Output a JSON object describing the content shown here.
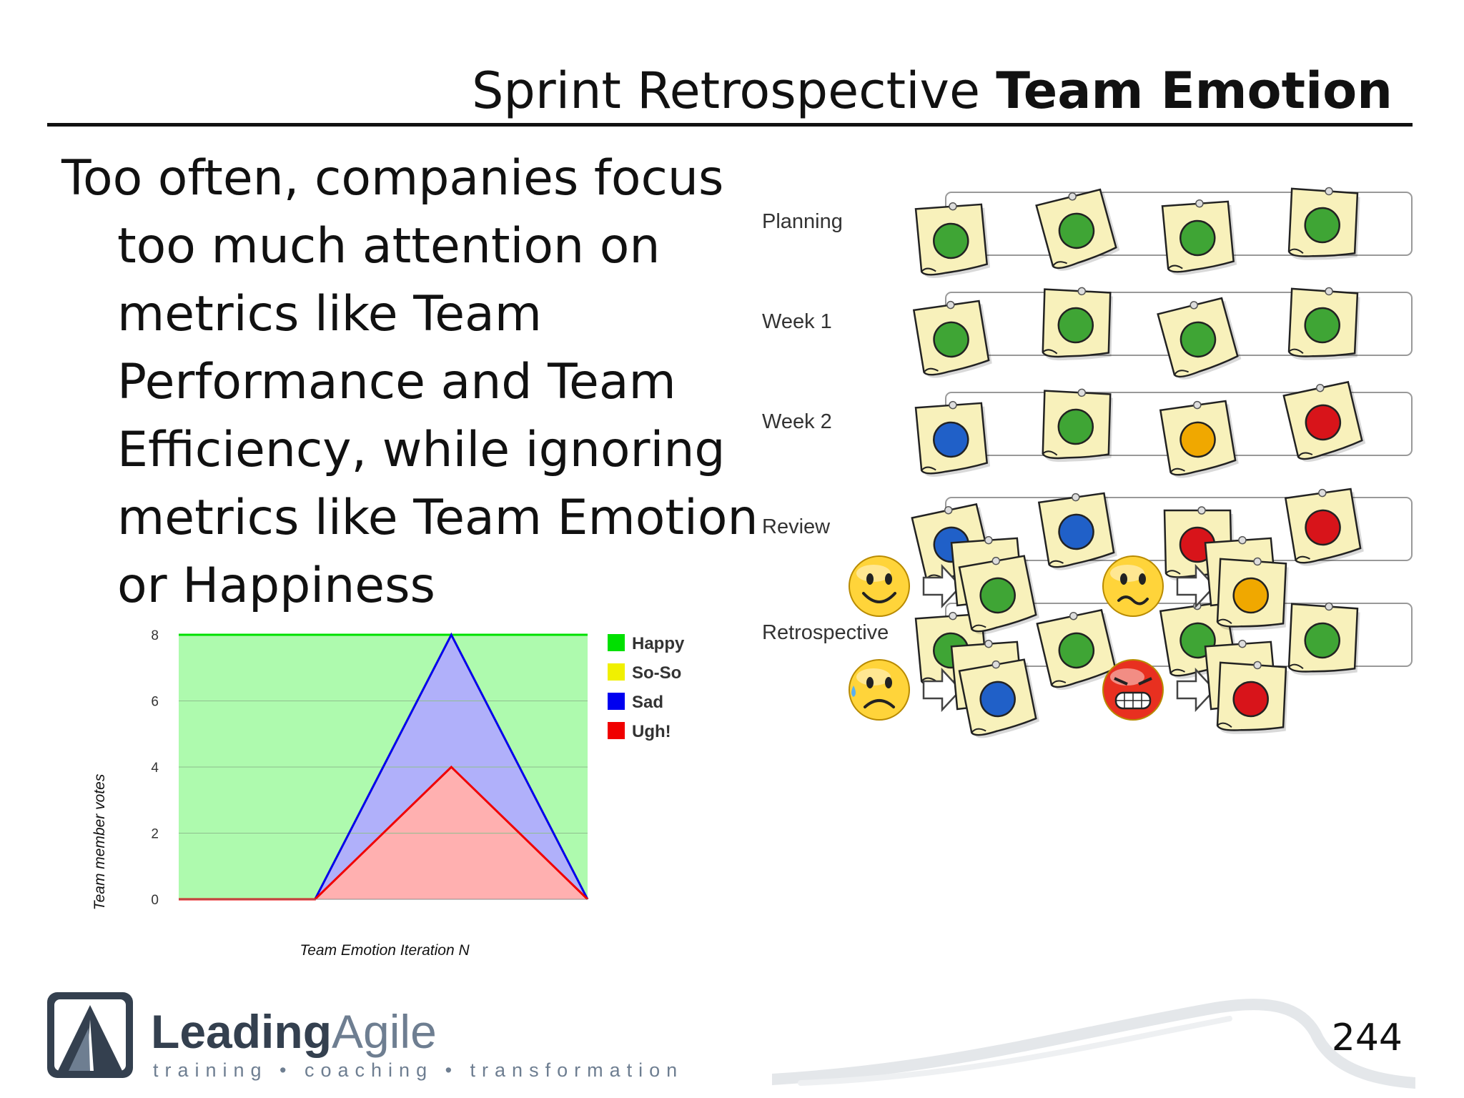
{
  "slide": {
    "title_normal": "Sprint Retrospective ",
    "title_bold": "Team Emotion",
    "body": "Too often, companies focus too much attention on metrics like Team Performance and Team Efficiency, while ignoring metrics like Team Emotion or Happiness",
    "page_number": "244"
  },
  "logo": {
    "name_part1": "Leading",
    "name_part2": "Agile",
    "tagline": "training • coaching • transformation",
    "dark_color": "#34404f",
    "light_color": "#6e7e91"
  },
  "emotion_board": {
    "rows": [
      {
        "label": "Planning",
        "notes": [
          "green",
          "green",
          "green",
          "green"
        ]
      },
      {
        "label": "Week 1",
        "notes": [
          "green",
          "green",
          "green",
          "green"
        ]
      },
      {
        "label": "Week 2",
        "notes": [
          "blue",
          "green",
          "yellow",
          "red"
        ]
      },
      {
        "label": "Review",
        "notes": [
          "blue",
          "blue",
          "red",
          "red"
        ]
      },
      {
        "label": "Retrospective",
        "notes": [
          "green",
          "green",
          "green",
          "green"
        ]
      }
    ],
    "legend": [
      {
        "icon": "happy-face-icon",
        "dot": "green"
      },
      {
        "icon": "unsure-face-icon",
        "dot": "yellow"
      },
      {
        "icon": "sad-face-icon",
        "dot": "blue"
      },
      {
        "icon": "angry-face-icon",
        "dot": "red"
      }
    ],
    "dot_colors": {
      "green": "#3fa535",
      "blue": "#2060c8",
      "yellow": "#f0a800",
      "red": "#d8141a"
    },
    "note_color": "#f8f1bb"
  },
  "chart_data": {
    "type": "area",
    "title": "",
    "xlabel": "Team Emotion Iteration N",
    "ylabel": "Team member votes",
    "ylim": [
      0,
      8
    ],
    "yticks": [
      0,
      2,
      4,
      6,
      8
    ],
    "grid": true,
    "legend_position": "right",
    "x": [
      0,
      1,
      2,
      3
    ],
    "series": [
      {
        "name": "Happy",
        "color": "#00e000",
        "fill": "#aefaae",
        "values": [
          8,
          8,
          8,
          8
        ]
      },
      {
        "name": "So-So",
        "color": "#f0f000",
        "fill": "#ffffa0",
        "values": [
          0,
          0,
          8,
          0
        ]
      },
      {
        "name": "Sad",
        "color": "#0000f0",
        "fill": "#b0b0fa",
        "values": [
          0,
          0,
          8,
          0
        ]
      },
      {
        "name": "Ugh!",
        "color": "#f00000",
        "fill": "#ffb0b0",
        "values": [
          0,
          0,
          4,
          0
        ]
      }
    ]
  }
}
